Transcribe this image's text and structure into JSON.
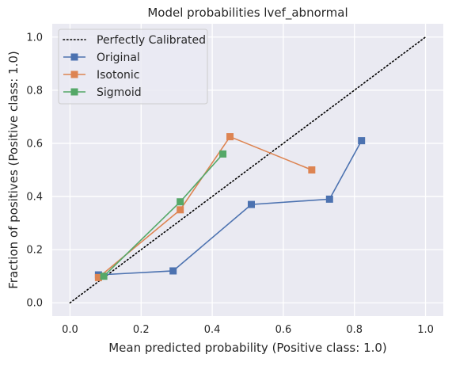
{
  "chart_data": {
    "type": "line",
    "title": "Model probabilities lvef_abnormal",
    "xlabel": "Mean predicted probability (Positive class: 1.0)",
    "ylabel": "Fraction of positives (Positive class: 1.0)",
    "xlim": [
      -0.05,
      1.05
    ],
    "ylim": [
      -0.05,
      1.05
    ],
    "xticks": [
      "0.0",
      "0.2",
      "0.4",
      "0.6",
      "0.8",
      "1.0"
    ],
    "yticks": [
      "0.0",
      "0.2",
      "0.4",
      "0.6",
      "0.8",
      "1.0"
    ],
    "grid": true,
    "legend_position": "upper-left",
    "reference_line": {
      "name": "Perfectly Calibrated",
      "x": [
        0,
        1
      ],
      "y": [
        0,
        1
      ],
      "style": "dotted",
      "color": "#000000"
    },
    "series": [
      {
        "name": "Original",
        "color": "#4c72b0",
        "marker": "square",
        "x": [
          0.08,
          0.29,
          0.51,
          0.73,
          0.82
        ],
        "y": [
          0.105,
          0.12,
          0.37,
          0.39,
          0.61
        ]
      },
      {
        "name": "Isotonic",
        "color": "#dd8452",
        "marker": "square",
        "x": [
          0.08,
          0.31,
          0.45,
          0.68
        ],
        "y": [
          0.095,
          0.35,
          0.625,
          0.5
        ]
      },
      {
        "name": "Sigmoid",
        "color": "#55a868",
        "marker": "square",
        "x": [
          0.095,
          0.31,
          0.43
        ],
        "y": [
          0.1,
          0.38,
          0.56
        ]
      }
    ]
  }
}
